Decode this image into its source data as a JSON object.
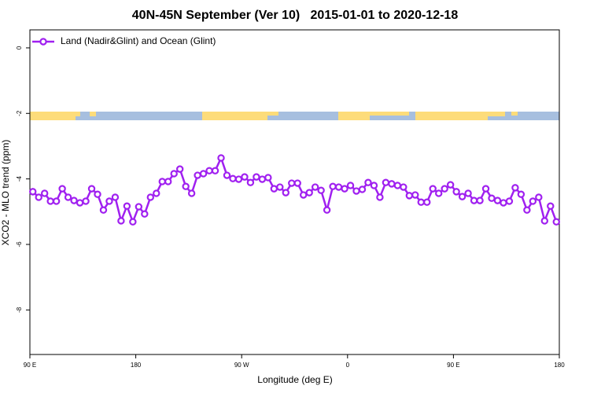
{
  "chart_data": {
    "type": "line",
    "title": "40N-45N September (Ver 10)   2015-01-01 to 2020-12-18",
    "xlabel": "Longitude (deg E)",
    "ylabel": "XCO2 - MLO trend (ppm)",
    "legend": "top-left",
    "xlim": [
      90,
      540
    ],
    "ylim": [
      -9.36,
      0.55
    ],
    "xticks": [
      {
        "value": 90,
        "label": "90 E"
      },
      180,
      {
        "value": 270,
        "label": "90 W"
      },
      {
        "value": 360,
        "label": "0"
      },
      {
        "value": 450,
        "label": "90 E"
      },
      {
        "value": 540,
        "label": "180"
      }
    ],
    "yticks": [
      0,
      -2,
      -4,
      -6,
      -8
    ],
    "x": [
      92.5,
      97.5,
      102.5,
      107.5,
      112.5,
      117.5,
      122.5,
      127.5,
      132.5,
      137.5,
      142.5,
      147.5,
      152.5,
      157.5,
      162.5,
      167.5,
      172.5,
      177.5,
      182.5,
      187.5,
      192.5,
      197.5,
      202.5,
      207.5,
      212.5,
      217.5,
      222.5,
      227.5,
      232.5,
      237.5,
      242.5,
      247.5,
      252.5,
      257.5,
      262.5,
      267.5,
      272.5,
      277.5,
      282.5,
      287.5,
      292.5,
      297.5,
      302.5,
      307.5,
      312.5,
      317.5,
      322.5,
      327.5,
      332.5,
      337.5,
      342.5,
      347.5,
      352.5,
      357.5,
      362.5,
      367.5,
      372.5,
      377.5,
      382.5,
      387.5,
      392.5,
      397.5,
      402.5,
      407.5,
      412.5,
      417.5,
      422.5,
      427.5,
      432.5,
      437.5,
      442.5,
      447.5,
      452.5,
      457.5,
      462.5,
      467.5,
      472.5,
      477.5,
      482.5,
      487.5,
      492.5,
      497.5,
      502.5,
      507.5,
      512.5,
      517.5,
      522.5,
      527.5,
      532.5,
      537.5
    ],
    "series": [
      {
        "name": "Land (Nadir&Glint) and Ocean (Glint)",
        "color": "#a020f0",
        "values": [
          -4.39,
          -4.56,
          -4.44,
          -4.68,
          -4.68,
          -4.3,
          -4.56,
          -4.66,
          -4.73,
          -4.68,
          -4.3,
          -4.47,
          -4.95,
          -4.68,
          -4.56,
          -5.28,
          -4.83,
          -5.31,
          -4.85,
          -5.07,
          -4.56,
          -4.44,
          -4.08,
          -4.08,
          -3.84,
          -3.7,
          -4.23,
          -4.44,
          -3.89,
          -3.84,
          -3.75,
          -3.75,
          -3.36,
          -3.89,
          -3.99,
          -4.01,
          -3.94,
          -4.11,
          -3.94,
          -4.01,
          -3.96,
          -4.3,
          -4.25,
          -4.42,
          -4.13,
          -4.13,
          -4.49,
          -4.42,
          -4.25,
          -4.35,
          -4.95,
          -4.23,
          -4.25,
          -4.3,
          -4.2,
          -4.37,
          -4.32,
          -4.11,
          -4.2,
          -4.56,
          -4.11,
          -4.15,
          -4.2,
          -4.25,
          -4.51,
          -4.49,
          -4.71,
          -4.71,
          -4.3,
          -4.44,
          -4.3,
          -4.18,
          -4.39,
          -4.54,
          -4.44,
          -4.66,
          -4.66,
          -4.3,
          -4.59,
          -4.66,
          -4.73,
          -4.68,
          -4.27,
          -4.47,
          -4.95,
          -4.68,
          -4.56,
          -5.28,
          -4.83,
          -5.31
        ]
      }
    ]
  }
}
